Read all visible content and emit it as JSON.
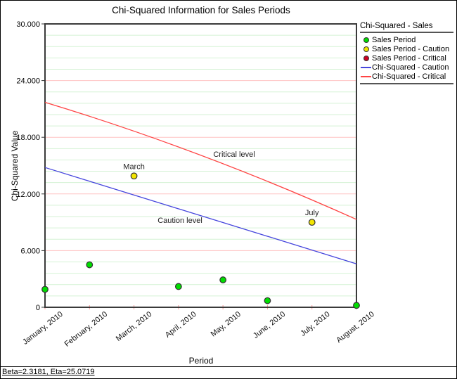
{
  "window": {
    "footer_stats": "Beta=2.3181, Eta=25.0719"
  },
  "legend": {
    "title": "Chi-Squared - Sales",
    "items": [
      {
        "label": "Sales Period",
        "marker": "dot",
        "color": "#00dd00"
      },
      {
        "label": "Sales Period - Caution",
        "marker": "dot",
        "color": "#f2e500"
      },
      {
        "label": "Sales Period - Critical",
        "marker": "dot",
        "color": "#cc0022"
      },
      {
        "label": "Chi-Squared - Caution",
        "marker": "line",
        "color": "#4646dd"
      },
      {
        "label": "Chi-Squared - Critical",
        "marker": "line",
        "color": "#ff4444"
      }
    ]
  },
  "chart_data": {
    "type": "scatter",
    "title": "Chi-Squared Information for Sales Periods",
    "xlabel": "Period",
    "ylabel": "Chi-Squared Value",
    "ylim": [
      0,
      30
    ],
    "y_ticks": [
      {
        "value": 0,
        "label": "0"
      },
      {
        "value": 6,
        "label": "6.000"
      },
      {
        "value": 12,
        "label": "12.000"
      },
      {
        "value": 18,
        "label": "18.000"
      },
      {
        "value": 24,
        "label": "24.000"
      },
      {
        "value": 30,
        "label": "30.000"
      }
    ],
    "categories": [
      "January, 2010",
      "February, 2010",
      "March, 2010",
      "April, 2010",
      "May, 2010",
      "June, 2010",
      "July, 2010",
      "August, 2010"
    ],
    "series": [
      {
        "name": "Sales Period",
        "values": [
          1.9,
          4.5,
          13.9,
          2.2,
          2.9,
          0.7,
          9.0,
          0.2
        ],
        "status": [
          "normal",
          "normal",
          "caution",
          "normal",
          "normal",
          "normal",
          "caution",
          "normal"
        ]
      }
    ],
    "point_labels": [
      {
        "index": 2,
        "text": "March"
      },
      {
        "index": 6,
        "text": "July"
      }
    ],
    "reference_lines": [
      {
        "name": "caution",
        "label": "Caution level",
        "start": 14.8,
        "end": 4.6,
        "color": "#4646dd"
      },
      {
        "name": "critical",
        "label": "Critical level",
        "start": 21.7,
        "mid": 16.1,
        "end": 9.3,
        "color": "#ff4444"
      }
    ],
    "grid": {
      "major_every": 6,
      "minor_every": 1.2,
      "major_color": "#ffc2c2",
      "minor_color": "#d4f2d4"
    },
    "footer": "Beta=2.3181, Eta=25.0719",
    "colors": {
      "normal": "#00dd00",
      "caution": "#f2e500",
      "critical": "#cc0022",
      "frame": "#3a3a3a",
      "x_tick": "#ff9999",
      "point_outline": "#333333"
    }
  }
}
